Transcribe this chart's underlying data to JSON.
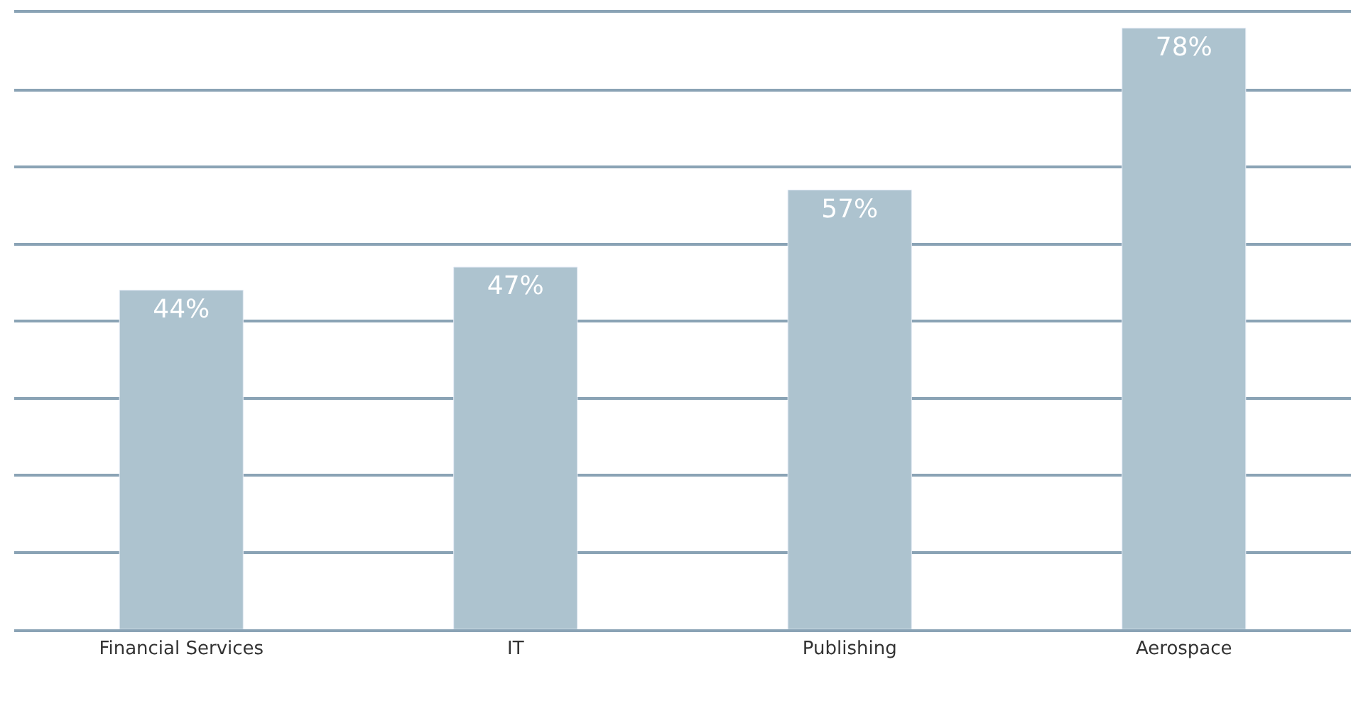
{
  "chart_data": {
    "type": "bar",
    "categories": [
      "Financial Services",
      "IT",
      "Publishing",
      "Aerospace"
    ],
    "values": [
      44,
      47,
      57,
      78
    ],
    "color": "#adc3cf",
    "value_labels": [
      "44%",
      "47%",
      "57%",
      "78%"
    ],
    "ylim": [
      0,
      80
    ],
    "yticks": [
      {
        "value": 0,
        "label": null
      },
      {
        "value": 10,
        "label": null
      },
      {
        "value": 20,
        "label": null
      },
      {
        "value": 30,
        "label": null
      },
      {
        "value": 40,
        "label": null
      },
      {
        "value": 50,
        "label": null
      },
      {
        "value": 60,
        "label": null
      },
      {
        "value": 70,
        "label": null
      },
      {
        "value": 80,
        "label": null
      }
    ],
    "grid": "y",
    "tick_labels": "x",
    "legend": false
  }
}
